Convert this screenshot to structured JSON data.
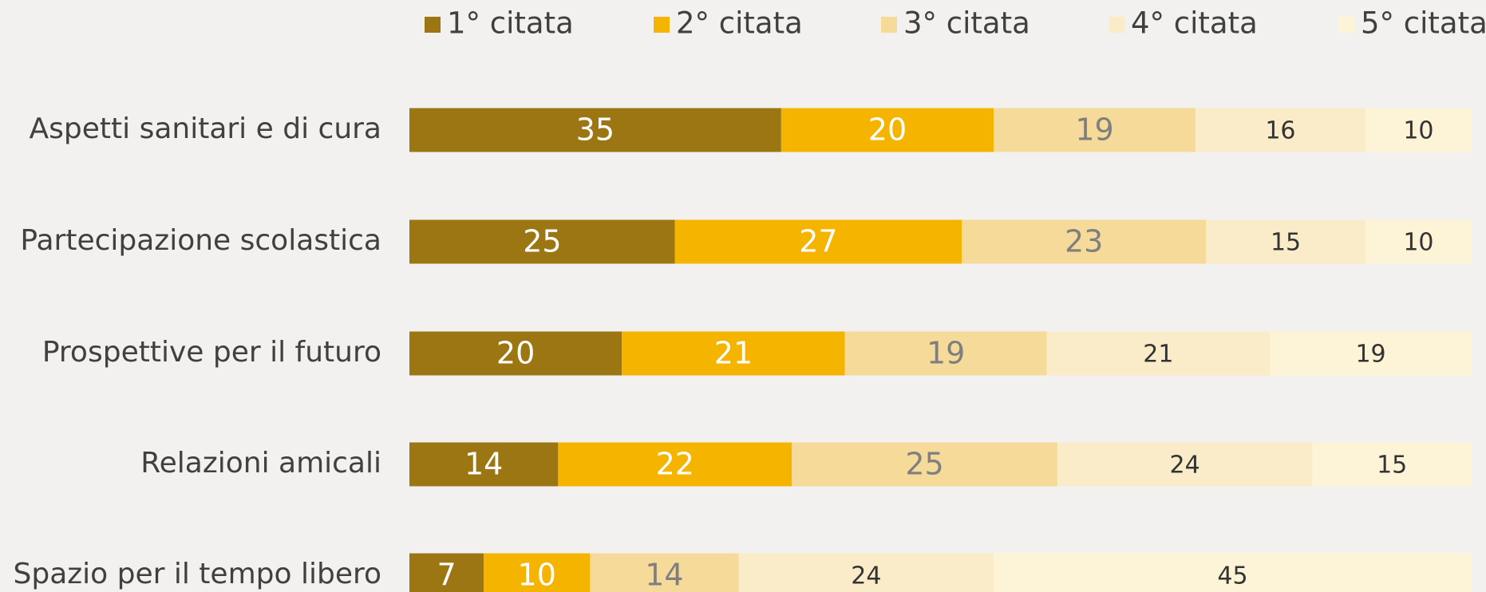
{
  "chart_data": {
    "type": "stacked-bar-horizontal",
    "categories": [
      "Aspetti sanitari e di cura",
      "Partecipazione scolastica",
      "Prospettive per il futuro",
      "Relazioni amicali",
      "Spazio per il tempo libero"
    ],
    "xlim": [
      0,
      100
    ],
    "legend": "top",
    "series": [
      {
        "name": "1° citata",
        "color": "#9c7612",
        "label_color": "#ffffff",
        "values": [
          35,
          25,
          20,
          14,
          7
        ]
      },
      {
        "name": "2° citata",
        "color": "#f5b400",
        "label_color": "#ffffff",
        "values": [
          20,
          27,
          21,
          22,
          10
        ]
      },
      {
        "name": "3° citata",
        "color": "#f5da9a",
        "label_color": "#7f7f7f",
        "values": [
          19,
          23,
          19,
          25,
          14
        ]
      },
      {
        "name": "4° citata",
        "color": "#faecc8",
        "label_color": "#333333",
        "values": [
          16,
          15,
          21,
          24,
          24
        ]
      },
      {
        "name": "5° citata",
        "color": "#fdf3d6",
        "label_color": "#333333",
        "values": [
          10,
          10,
          19,
          15,
          45
        ]
      }
    ]
  }
}
